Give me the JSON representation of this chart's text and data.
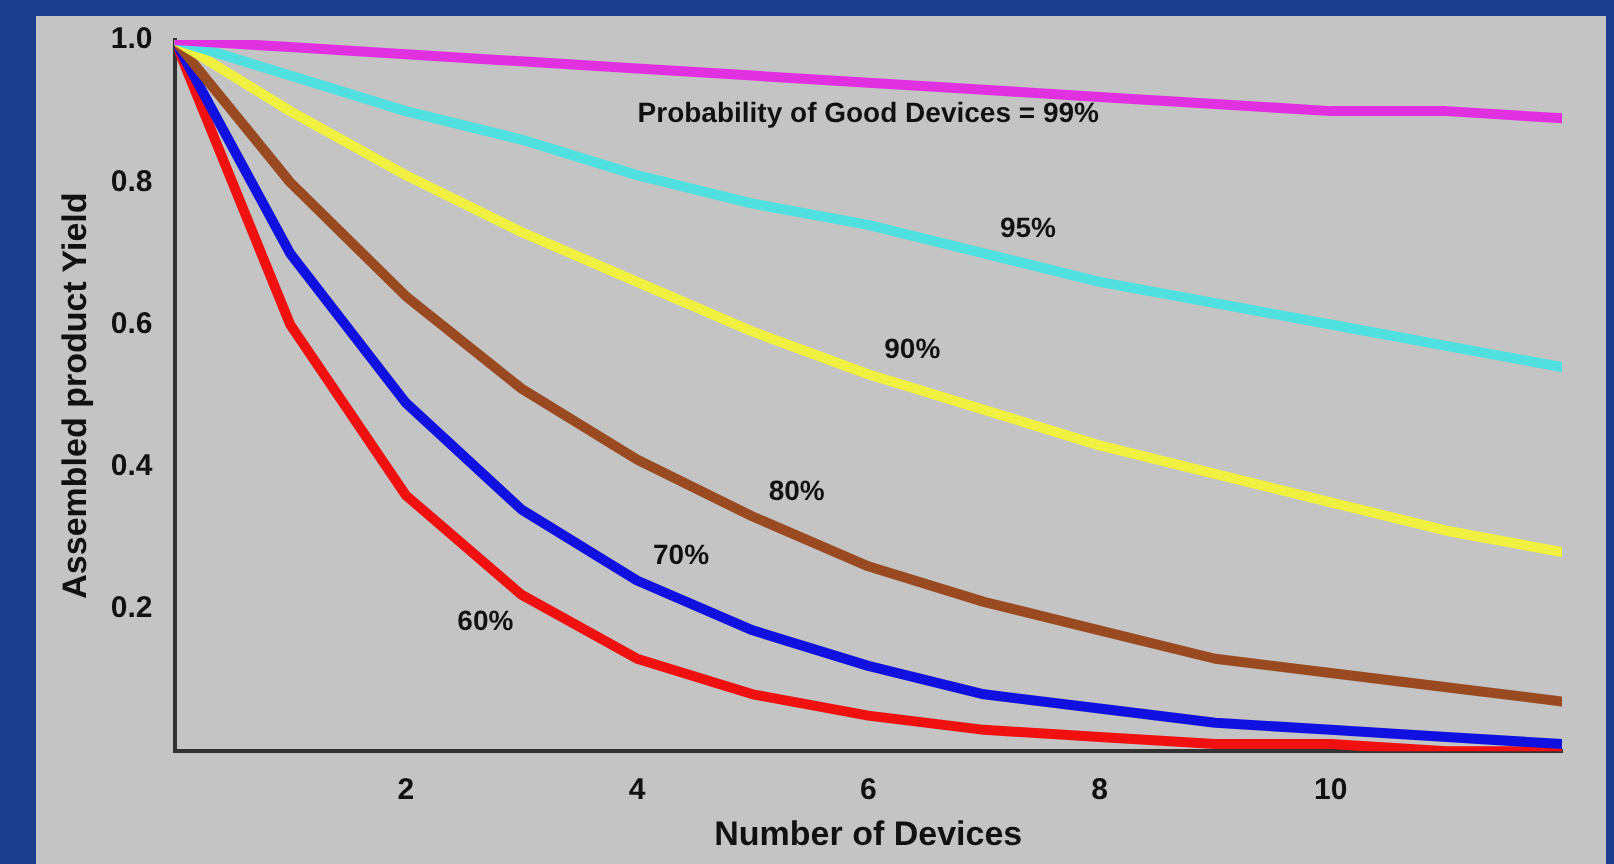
{
  "chart_data": {
    "type": "line",
    "xlabel": "Number of Devices",
    "ylabel": "Assembled product Yield",
    "x": [
      0,
      1,
      2,
      3,
      4,
      5,
      6,
      7,
      8,
      9,
      10,
      11,
      12
    ],
    "series": [
      {
        "name": "Probability of Good Devices = 99%",
        "color": "#e030e0",
        "values": [
          1,
          0.99,
          0.98,
          0.97,
          0.96,
          0.95,
          0.94,
          0.93,
          0.92,
          0.91,
          0.9,
          0.9,
          0.89
        ]
      },
      {
        "name": "95%",
        "color": "#50e0e0",
        "values": [
          1,
          0.95,
          0.9,
          0.86,
          0.81,
          0.77,
          0.74,
          0.7,
          0.66,
          0.63,
          0.6,
          0.57,
          0.54
        ]
      },
      {
        "name": "90%",
        "color": "#f0f040",
        "values": [
          1,
          0.9,
          0.81,
          0.73,
          0.66,
          0.59,
          0.53,
          0.48,
          0.43,
          0.39,
          0.35,
          0.31,
          0.28
        ]
      },
      {
        "name": "80%",
        "color": "#9a4a20",
        "values": [
          1,
          0.8,
          0.64,
          0.51,
          0.41,
          0.33,
          0.26,
          0.21,
          0.17,
          0.13,
          0.11,
          0.09,
          0.07
        ]
      },
      {
        "name": "70%",
        "color": "#1010e0",
        "values": [
          1,
          0.7,
          0.49,
          0.34,
          0.24,
          0.17,
          0.12,
          0.08,
          0.06,
          0.04,
          0.03,
          0.02,
          0.01
        ]
      },
      {
        "name": "60%",
        "color": "#f01010",
        "values": [
          1,
          0.6,
          0.36,
          0.22,
          0.13,
          0.08,
          0.05,
          0.03,
          0.02,
          0.01,
          0.01,
          0,
          0
        ]
      }
    ],
    "xlim": [
      0,
      12
    ],
    "xticks": [
      2,
      4,
      6,
      8,
      10
    ],
    "ylim": [
      0,
      1
    ],
    "yticks": [
      {
        "value": 0.2,
        "label": "0.2"
      },
      {
        "value": 0.4,
        "label": "0.4"
      },
      {
        "value": 0.6,
        "label": "0.6"
      },
      {
        "value": 0.8,
        "label": "0.8"
      },
      {
        "value": 1,
        "label": "1.0"
      }
    ],
    "grid": false,
    "legend": false,
    "marker": "none",
    "line_style": "solid"
  }
}
